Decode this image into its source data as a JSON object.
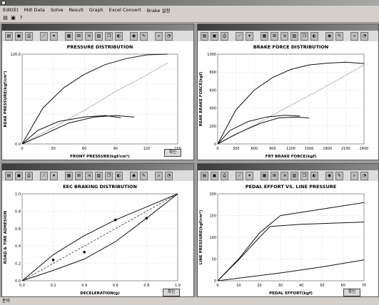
{
  "menu": [
    "Edit(E)",
    "Mdl Data",
    "Solve",
    "Result",
    "Graph",
    "Excel Convert",
    "Brake 설정"
  ],
  "main_toolbar_icons": [
    "open-icon",
    "save-icon",
    "help-icon"
  ],
  "panel_toolbar_icons": [
    "open-icon",
    "save-icon",
    "print-icon",
    "line-chart-icon",
    "arrow-icon",
    "table-icon",
    "grid-icon",
    "export-icon",
    "image-icon",
    "copy-icon",
    "color-icon",
    "globe-icon",
    "marker-icon",
    "zoom-icon",
    "search-icon"
  ],
  "confirm_label": "확인",
  "status_text": "준비",
  "panels": {
    "pressure": {
      "chart_data": {
        "type": "line",
        "title": "PRESSURE DISTRIBUTION",
        "xlabel": "FRONT PRESSURE(kgf/cm²)",
        "ylabel": "REAR PRESSURE(kgf/cm²)",
        "xlim": [
          0,
          150
        ],
        "ylim": [
          0,
          120
        ],
        "xticks": [
          "0",
          "30",
          "60",
          "90",
          "120",
          "150"
        ],
        "yticks": [
          "0.0",
          "",
          "",
          "",
          "",
          "",
          "120.0"
        ],
        "series": [
          {
            "values": [
              [
                0,
                0
              ],
              [
                20,
                48
              ],
              [
                40,
                75
              ],
              [
                60,
                93
              ],
              [
                80,
                106
              ],
              [
                100,
                114
              ],
              [
                120,
                119
              ],
              [
                140,
                120
              ]
            ],
            "style": "solid"
          },
          {
            "values": [
              [
                0,
                0
              ],
              [
                30,
                22
              ],
              [
                60,
                45
              ],
              [
                90,
                70
              ],
              [
                120,
                92
              ],
              [
                140,
                108
              ]
            ],
            "style": "dotted"
          },
          {
            "values": [
              [
                0,
                0
              ],
              [
                15,
                18
              ],
              [
                35,
                30
              ],
              [
                60,
                36
              ],
              [
                80,
                38
              ],
              [
                95,
                35
              ]
            ],
            "style": "solid"
          },
          {
            "values": [
              [
                0,
                0
              ],
              [
                20,
                12
              ],
              [
                45,
                28
              ],
              [
                70,
                36
              ],
              [
                90,
                38
              ],
              [
                108,
                36
              ]
            ],
            "style": "solid"
          }
        ]
      }
    },
    "brake": {
      "chart_data": {
        "type": "line",
        "title": "BRAKE FORCE DISTRIBUTION",
        "xlabel": "FRT BRAKE FORCE(kgf)",
        "ylabel": "REAR BRAKE FORCE(kgf)",
        "xlim": [
          0,
          2400
        ],
        "ylim": [
          0,
          1000
        ],
        "xticks": [
          "0",
          "300",
          "600",
          "900",
          "1200",
          "1500",
          "1800",
          "2100",
          "2400"
        ],
        "yticks": [
          "0",
          "200",
          "400",
          "600",
          "800",
          "1000"
        ],
        "series": [
          {
            "values": [
              [
                0,
                0
              ],
              [
                300,
                380
              ],
              [
                600,
                600
              ],
              [
                900,
                740
              ],
              [
                1200,
                830
              ],
              [
                1500,
                880
              ],
              [
                1800,
                900
              ],
              [
                2100,
                910
              ],
              [
                2400,
                895
              ]
            ],
            "style": "solid"
          },
          {
            "values": [
              [
                0,
                0
              ],
              [
                600,
                210
              ],
              [
                1200,
                430
              ],
              [
                1800,
                650
              ],
              [
                2400,
                880
              ]
            ],
            "style": "dotted"
          },
          {
            "values": [
              [
                0,
                0
              ],
              [
                200,
                150
              ],
              [
                500,
                250
              ],
              [
                800,
                300
              ],
              [
                1100,
                320
              ],
              [
                1350,
                310
              ]
            ],
            "style": "solid"
          },
          {
            "values": [
              [
                0,
                0
              ],
              [
                300,
                110
              ],
              [
                700,
                230
              ],
              [
                1000,
                290
              ],
              [
                1300,
                300
              ],
              [
                1500,
                290
              ]
            ],
            "style": "solid"
          }
        ]
      }
    },
    "eec": {
      "chart_data": {
        "type": "line",
        "title": "EEC BRAKING DISTRIBUTION",
        "xlabel": "DECELERATION(g)",
        "ylabel": "ROAD & TIRE ADHESION",
        "xlim": [
          0,
          1.0
        ],
        "ylim": [
          0,
          1.0
        ],
        "xticks": [
          "0.0",
          "0.2",
          "0.4",
          "0.6",
          "0.8",
          "1.0"
        ],
        "yticks": [
          "0.0",
          "0.2",
          "0.4",
          "0.6",
          "0.8",
          "1.0"
        ],
        "series": [
          {
            "values": [
              [
                0.0,
                0.0
              ],
              [
                0.2,
                0.3
              ],
              [
                0.4,
                0.52
              ],
              [
                0.6,
                0.7
              ],
              [
                0.8,
                0.85
              ],
              [
                1.0,
                1.0
              ]
            ],
            "style": "solid"
          },
          {
            "values": [
              [
                0.0,
                0.0
              ],
              [
                0.2,
                0.12
              ],
              [
                0.4,
                0.25
              ],
              [
                0.6,
                0.45
              ],
              [
                0.8,
                0.72
              ],
              [
                1.0,
                1.0
              ]
            ],
            "style": "solid"
          },
          {
            "values": [
              [
                0.0,
                0.0
              ],
              [
                0.2,
                0.2
              ],
              [
                0.4,
                0.4
              ],
              [
                0.6,
                0.6
              ],
              [
                0.8,
                0.8
              ],
              [
                1.0,
                1.0
              ]
            ],
            "style": "dashed"
          }
        ],
        "markers": [
          [
            0.2,
            0.24
          ],
          [
            0.4,
            0.33
          ],
          [
            0.6,
            0.7
          ],
          [
            0.8,
            0.72
          ]
        ]
      }
    },
    "pedal": {
      "chart_data": {
        "type": "line",
        "title": "PEDAL EFFORT VS. LINE PRESSURE",
        "xlabel": "PEDAL EFFORT(kgf)",
        "ylabel": "LINE PRESSURE(kgf/cm²)",
        "xlim": [
          0,
          70
        ],
        "ylim": [
          0,
          200
        ],
        "xticks": [
          "0",
          "10",
          "20",
          "30",
          "40",
          "50",
          "60",
          "70"
        ],
        "yticks": [
          "0",
          "50",
          "100",
          "150",
          "200"
        ],
        "series": [
          {
            "values": [
              [
                0,
                0
              ],
              [
                10,
                50
              ],
              [
                20,
                110
              ],
              [
                30,
                150
              ],
              [
                50,
                165
              ],
              [
                70,
                180
              ]
            ],
            "style": "solid"
          },
          {
            "values": [
              [
                0,
                0
              ],
              [
                10,
                48
              ],
              [
                20,
                100
              ],
              [
                25,
                125
              ],
              [
                40,
                130
              ],
              [
                70,
                135
              ]
            ],
            "style": "solid"
          },
          {
            "values": [
              [
                0,
                0
              ],
              [
                30,
                18
              ],
              [
                50,
                32
              ],
              [
                70,
                48
              ]
            ],
            "style": "solid"
          }
        ]
      }
    }
  }
}
